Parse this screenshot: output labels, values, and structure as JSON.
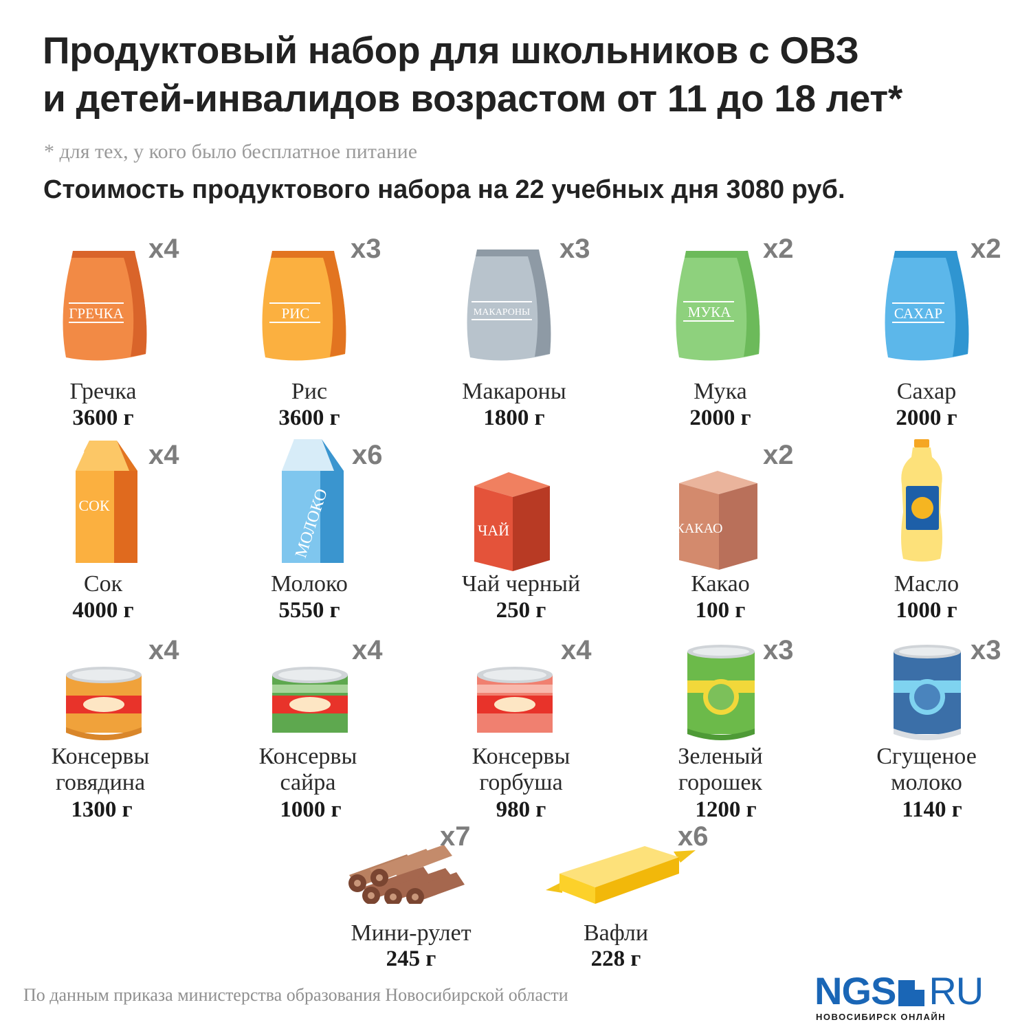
{
  "header": {
    "title_line1": "Продуктовый набор для школьников с ОВЗ",
    "title_line2": "и детей-инвалидов возрастом от 11 до 18 лет*",
    "footnote": "* для тех, у кого было бесплатное питание",
    "subtitle": "Стоимость продуктового набора на 22 учебных дня 3080 руб."
  },
  "items": [
    {
      "name_line1": "Гречка",
      "weight": "3600 г",
      "qty": "x4",
      "pack_text": "ГРЕЧКА",
      "icon": "bag-icon",
      "color": "#f28a45"
    },
    {
      "name_line1": "Рис",
      "weight": "3600 г",
      "qty": "x3",
      "pack_text": "РИС",
      "icon": "bag-icon",
      "color": "#fbb040"
    },
    {
      "name_line1": "Макароны",
      "weight": "1800 г",
      "qty": "x3",
      "pack_text": "МАКАРОНЫ",
      "icon": "bag-icon",
      "color": "#b8c3cc"
    },
    {
      "name_line1": "Мука",
      "weight": "2000 г",
      "qty": "x2",
      "pack_text": "МУКА",
      "icon": "bag-icon",
      "color": "#8ed17d"
    },
    {
      "name_line1": "Сахар",
      "weight": "2000 г",
      "qty": "x2",
      "pack_text": "САХАР",
      "icon": "bag-icon",
      "color": "#5cb7ea"
    },
    {
      "name_line1": "Сок",
      "weight": "4000 г",
      "qty": "x4",
      "pack_text": "СОК",
      "icon": "juice-carton-icon",
      "color": "#fbb040"
    },
    {
      "name_line1": "Молоко",
      "weight": "5550 г",
      "qty": "x6",
      "pack_text": "МОЛОКО",
      "icon": "milk-carton-icon",
      "color": "#5cb7ea"
    },
    {
      "name_line1": "Чай черный",
      "weight": "250 г",
      "qty": "",
      "pack_text": "ЧАЙ",
      "icon": "tea-box-icon",
      "color": "#e4533a"
    },
    {
      "name_line1": "Какао",
      "weight": "100 г",
      "qty": "x2",
      "pack_text": "КАКАО",
      "icon": "cocoa-box-icon",
      "color": "#d38a6d"
    },
    {
      "name_line1": "Масло",
      "weight": "1000 г",
      "qty": "",
      "pack_text": "",
      "icon": "oil-bottle-icon",
      "color": "#fde17a"
    },
    {
      "name_line1": "Консервы",
      "name_line2": "говядина",
      "weight": "1300 г",
      "qty": "x4",
      "icon": "can-icon",
      "color": "#f0a23b"
    },
    {
      "name_line1": "Консервы",
      "name_line2": "сайра",
      "weight": "1000 г",
      "qty": "x4",
      "icon": "can-icon",
      "color": "#5ea84f"
    },
    {
      "name_line1": "Консервы",
      "name_line2": "горбуша",
      "weight": "980 г",
      "qty": "x4",
      "icon": "can-icon",
      "color": "#f08070"
    },
    {
      "name_line1": "Зеленый",
      "name_line2": "горошек",
      "weight": "1200 г",
      "qty": "x3",
      "icon": "tall-can-icon",
      "color": "#6cba4a"
    },
    {
      "name_line1": "Сгущеное",
      "name_line2": "молоко",
      "weight": "1140 г",
      "qty": "x3",
      "icon": "tall-can-icon",
      "color": "#3b6fa8"
    },
    {
      "name_line1": "Мини-рулет",
      "weight": "245 г",
      "qty": "x7",
      "icon": "mini-roll-icon",
      "color": "#a5674e"
    },
    {
      "name_line1": "Вафли",
      "weight": "228 г",
      "qty": "x6",
      "icon": "wafer-pack-icon",
      "color": "#fcd12a"
    }
  ],
  "footer": {
    "source": "По данным приказа министерства образования Новосибирской области",
    "logo_left": "NGS",
    "logo_right": "RU",
    "logo_sub": "НОВОСИБИРСК ОНЛАЙН"
  }
}
